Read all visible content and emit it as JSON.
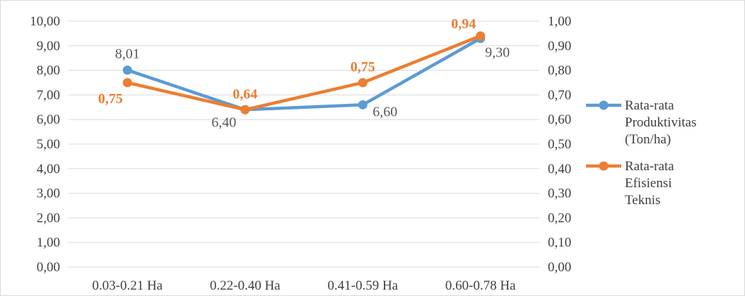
{
  "chart_data": {
    "type": "line",
    "categories": [
      "0.03-0.21 Ha",
      "0.22-0.40 Ha",
      "0.41-0.59 Ha",
      "0.60-0.78 Ha"
    ],
    "series": [
      {
        "name": "Rata-rata Produktivitas (Ton/ha)",
        "legend_lines": [
          "Rata-rata",
          "Produktivitas",
          "(Ton/ha)"
        ],
        "axis": "left",
        "values": [
          8.01,
          6.4,
          6.6,
          9.3
        ],
        "labels": [
          "8,01",
          "6,40",
          "6,60",
          "9,30"
        ],
        "color": "#5B9BD5"
      },
      {
        "name": "Rata-rata Efisiensi Teknis",
        "legend_lines": [
          "Rata-rata",
          "Efisiensi",
          "Teknis"
        ],
        "axis": "right",
        "values": [
          0.75,
          0.64,
          0.75,
          0.94
        ],
        "labels": [
          "0,75",
          "0,64",
          "0,75",
          "0,94"
        ],
        "color": "#ED7D31"
      }
    ],
    "y_left": {
      "min": 0,
      "max": 10,
      "ticks": [
        "0,00",
        "1,00",
        "2,00",
        "3,00",
        "4,00",
        "5,00",
        "6,00",
        "7,00",
        "8,00",
        "9,00",
        "10,00"
      ]
    },
    "y_right": {
      "min": 0,
      "max": 1,
      "ticks": [
        "0,00",
        "0,10",
        "0,20",
        "0,30",
        "0,40",
        "0,50",
        "0,60",
        "0,70",
        "0,80",
        "0,90",
        "1,00"
      ]
    },
    "grid": true,
    "legend_position": "right"
  }
}
